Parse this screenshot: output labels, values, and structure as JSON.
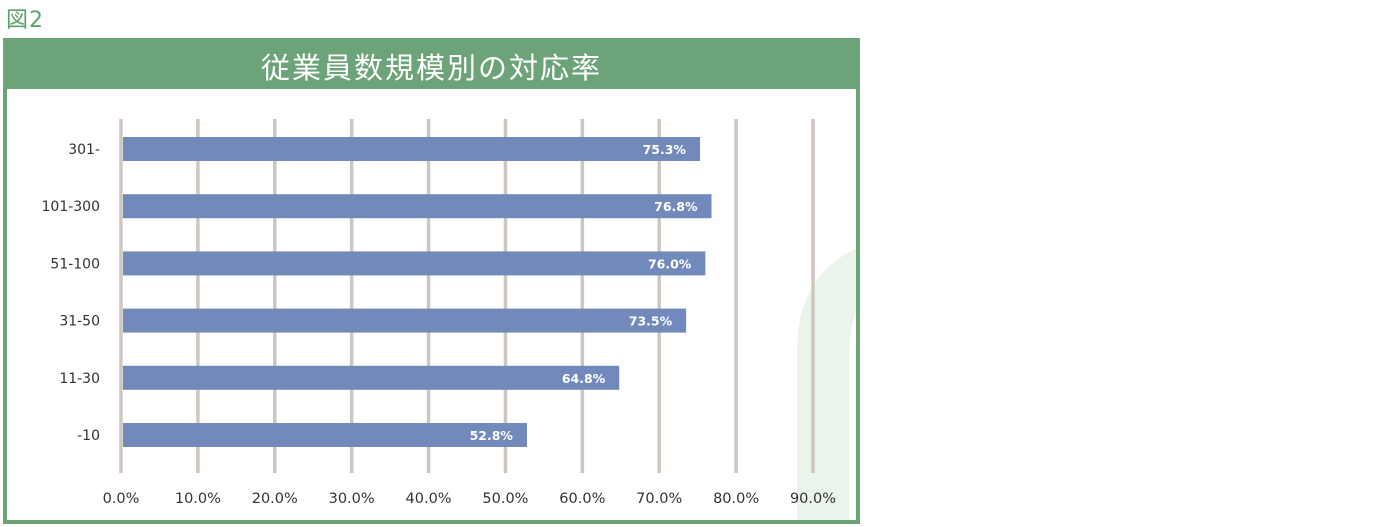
{
  "figure_label": "図2",
  "colors": {
    "frame": "#6da379",
    "bar": "#7189bb",
    "grid": "#cfc6c0",
    "label_green": "#5aa36c",
    "decor": "#eaf4ea"
  },
  "chart_data": {
    "type": "bar",
    "orientation": "horizontal",
    "title": "従業員数規模別の対応率",
    "categories": [
      "301-",
      "101-300",
      "51-100",
      "31-50",
      "11-30",
      "-10"
    ],
    "values": [
      75.3,
      76.8,
      76.0,
      73.5,
      64.8,
      52.8
    ],
    "data_labels": [
      "75.3%",
      "76.8%",
      "76.0%",
      "73.5%",
      "64.8%",
      "52.8%"
    ],
    "x_ticks": [
      0,
      10,
      20,
      30,
      40,
      50,
      60,
      70,
      80,
      90
    ],
    "x_tick_labels": [
      "0.0%",
      "10.0%",
      "20.0%",
      "30.0%",
      "40.0%",
      "50.0%",
      "60.0%",
      "70.0%",
      "80.0%",
      "90.0%"
    ],
    "xlim": [
      0,
      90
    ],
    "grid": true,
    "legend": "none"
  }
}
